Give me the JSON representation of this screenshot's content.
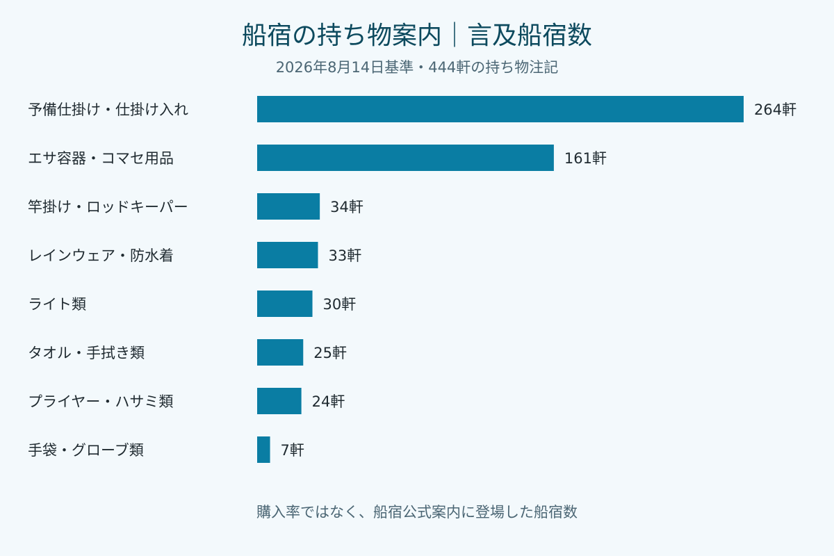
{
  "colors": {
    "background": "#f3f9fc",
    "bar": "#0a7da3",
    "title": "#0d4a5e",
    "subtitle": "#4b6674",
    "label": "#1f2a30"
  },
  "footnote": "購入率ではなく、船宿公式案内に登場した船宿数",
  "chart_data": {
    "type": "bar",
    "orientation": "horizontal",
    "title": "船宿の持ち物案内｜言及船宿数",
    "subtitle": "2026年8月14日基準・444軒の持ち物注記",
    "categories": [
      "予備仕掛け・仕掛け入れ",
      "エサ容器・コマセ用品",
      "竿掛け・ロッドキーパー",
      "レインウェア・防水着",
      "ライト類",
      "タオル・手拭き類",
      "プライヤー・ハサミ類",
      "手袋・グローブ類"
    ],
    "values": [
      264,
      161,
      34,
      33,
      30,
      25,
      24,
      7
    ],
    "value_labels": [
      "264軒",
      "161軒",
      "34軒",
      "33軒",
      "30軒",
      "25軒",
      "24軒",
      "7軒"
    ],
    "grid": false,
    "legend": "none"
  }
}
